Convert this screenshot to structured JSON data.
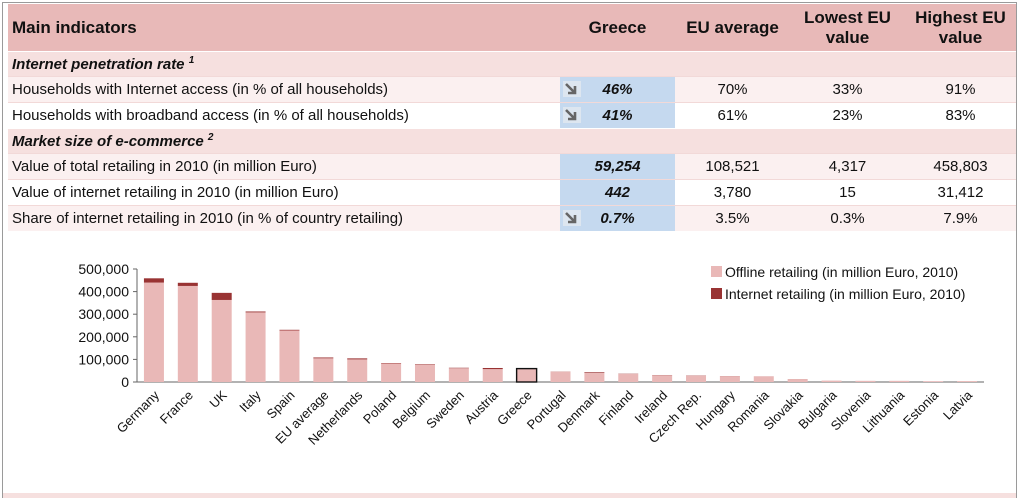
{
  "table": {
    "headers": [
      "Main indicators",
      "Greece",
      "EU average",
      "Lowest EU value",
      "Highest EU value"
    ],
    "sections": [
      {
        "title": "Internet penetration rate",
        "footnote": "1",
        "rows": [
          {
            "label": "Households with Internet access (in % of all households)",
            "greece": "46%",
            "arrow": true,
            "eu_avg": "70%",
            "lowest": "33%",
            "highest": "91%"
          },
          {
            "label": "Households with broadband access (in % of all households)",
            "greece": "41%",
            "arrow": true,
            "eu_avg": "61%",
            "lowest": "23%",
            "highest": "83%"
          }
        ]
      },
      {
        "title": "Market size of e-commerce",
        "footnote": "2",
        "rows": [
          {
            "label": "Value of total retailing in 2010 (in million Euro)",
            "greece": "59,254",
            "arrow": false,
            "eu_avg": "108,521",
            "lowest": "4,317",
            "highest": "458,803"
          },
          {
            "label": "Value of internet retailing in 2010 (in million Euro)",
            "greece": "442",
            "arrow": false,
            "eu_avg": "3,780",
            "lowest": "15",
            "highest": "31,412"
          },
          {
            "label": "Share of internet retailing in 2010 (in % of country retailing)",
            "greece": "0.7%",
            "arrow": true,
            "eu_avg": "3.5%",
            "lowest": "0.3%",
            "highest": "7.9%"
          }
        ]
      }
    ]
  },
  "chart_data": {
    "type": "bar",
    "stacked": true,
    "categories": [
      "Germany",
      "France",
      "UK",
      "Italy",
      "Spain",
      "EU average",
      "Netherlands",
      "Poland",
      "Belgium",
      "Sweden",
      "Austria",
      "Greece",
      "Portugal",
      "Denmark",
      "Finland",
      "Ireland",
      "Czech Rep.",
      "Hungary",
      "Romania",
      "Slovakia",
      "Bulgaria",
      "Slovenia",
      "Lithuania",
      "Estonia",
      "Latvia"
    ],
    "series": [
      {
        "name": "Offline retailing (in million Euro, 2010)",
        "color": "#e9b8b7",
        "values": [
          440000,
          425000,
          363000,
          308000,
          228000,
          104741,
          100000,
          82000,
          77000,
          61000,
          57000,
          58812,
          46000,
          40000,
          36000,
          30000,
          28000,
          26000,
          25000,
          13000,
          6000,
          5000,
          5000,
          3500,
          4000
        ]
      },
      {
        "name": "Internet retailing (in million Euro, 2010)",
        "color": "#993333",
        "values": [
          18800,
          14000,
          31412,
          4000,
          3000,
          3780,
          4500,
          2000,
          2000,
          2000,
          5000,
          442,
          500,
          3000,
          1000,
          1000,
          1000,
          500,
          200,
          200,
          100,
          100,
          100,
          50,
          30
        ]
      }
    ],
    "yticks": [
      "500,000",
      "400,000",
      "300,000",
      "200,000",
      "100,000",
      "0"
    ],
    "ylim": [
      0,
      500000
    ],
    "highlight": "Greece",
    "legend": "top-right"
  },
  "colors": {
    "header_bg": "#e8b9b8",
    "section_bg": "#f6e0df",
    "greece_bg": "#c5d9ef"
  }
}
